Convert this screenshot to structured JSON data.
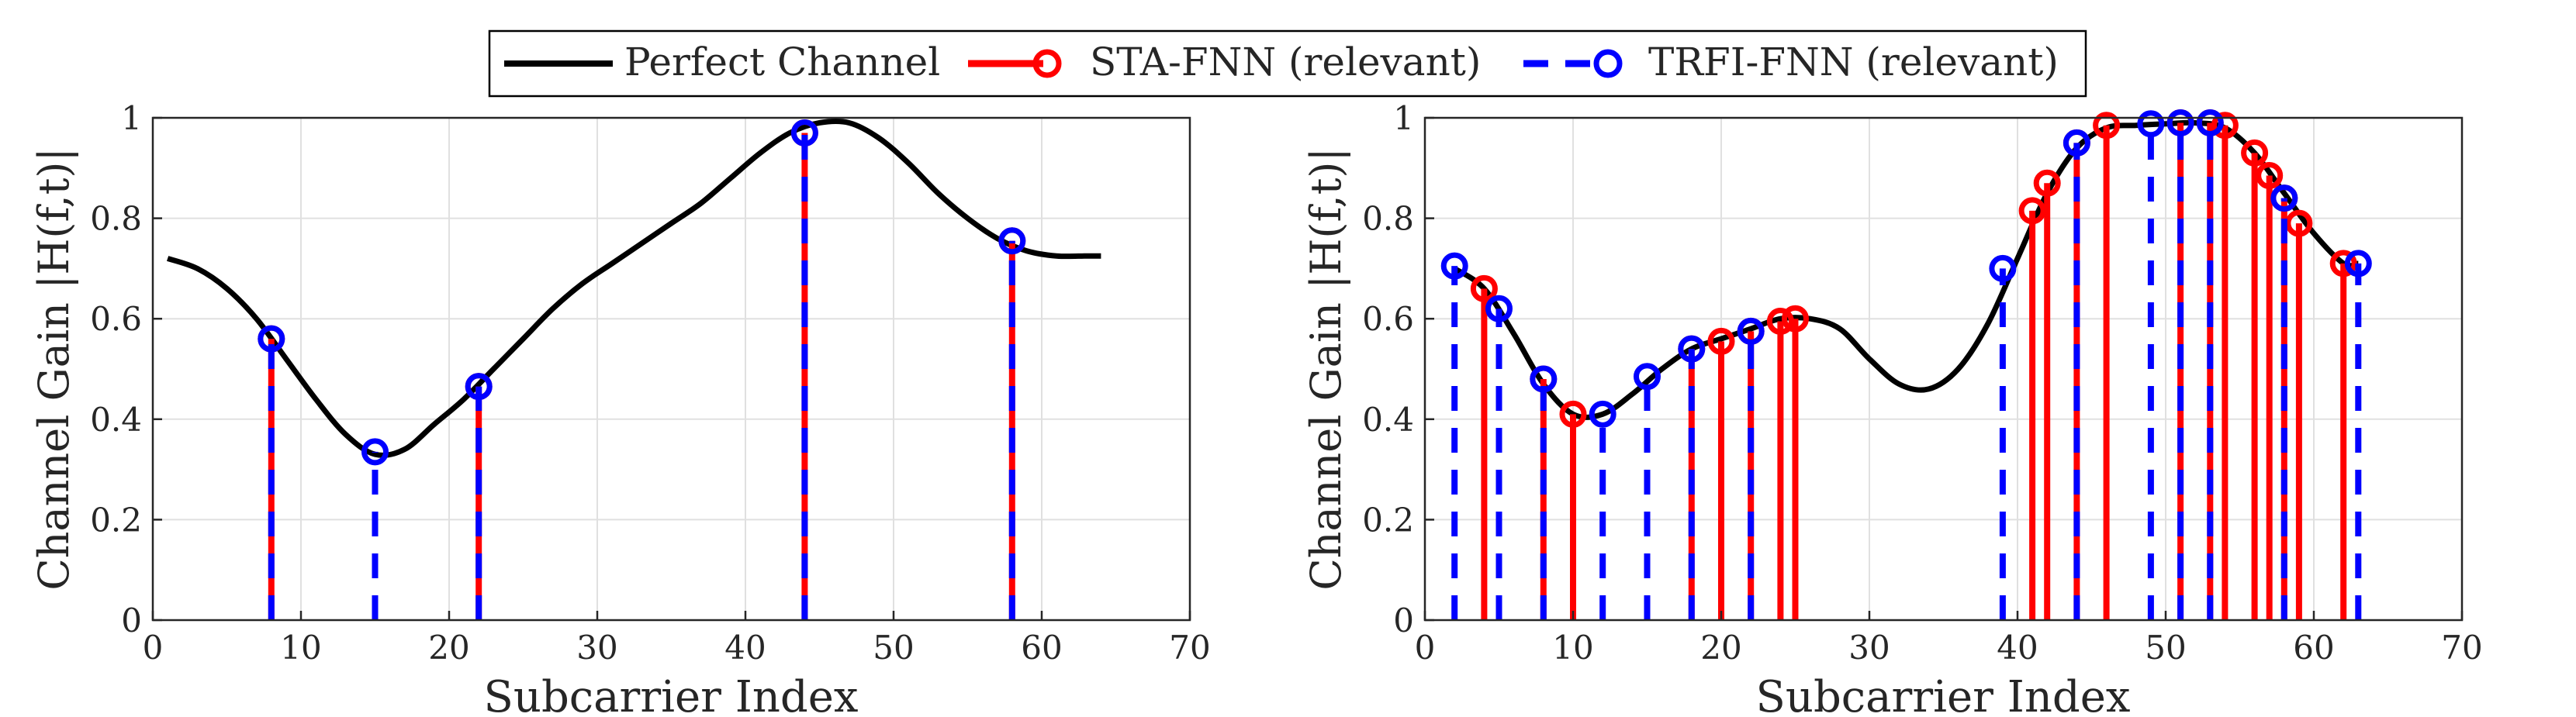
{
  "legend": {
    "entries": [
      {
        "label": "Perfect Channel",
        "color": "#000000",
        "style": "solid-line"
      },
      {
        "label": "STA-FNN (relevant)",
        "color": "#ff0000",
        "style": "solid-stem-circle"
      },
      {
        "label": "TRFI-FNN (relevant)",
        "color": "#0000ff",
        "style": "dashed-stem-circle"
      }
    ]
  },
  "chart_data": [
    {
      "type": "line+stem",
      "title": "",
      "xlabel": "Subcarrier Index",
      "ylabel": "Channel Gain |H(f,t)|",
      "xlim": [
        0,
        70
      ],
      "ylim": [
        0,
        1
      ],
      "xticks": [
        0,
        10,
        20,
        30,
        40,
        50,
        60,
        70
      ],
      "yticks": [
        0,
        0.2,
        0.4,
        0.6,
        0.8,
        1
      ],
      "xtick_labels": [
        "0",
        "10",
        "20",
        "30",
        "40",
        "50",
        "60",
        "70"
      ],
      "ytick_labels": [
        "0",
        "0.2",
        "0.4",
        "0.6",
        "0.8",
        "1"
      ],
      "grid": true,
      "series": [
        {
          "name": "Perfect Channel",
          "kind": "line",
          "x": [
            1,
            3,
            5,
            7,
            9,
            11,
            13,
            15,
            17,
            19,
            21,
            23,
            25,
            27,
            29,
            31,
            33,
            35,
            37,
            39,
            41,
            43,
            45,
            47,
            49,
            51,
            53,
            55,
            57,
            59,
            61,
            63,
            64
          ],
          "y": [
            0.72,
            0.7,
            0.66,
            0.6,
            0.52,
            0.44,
            0.37,
            0.33,
            0.34,
            0.39,
            0.44,
            0.5,
            0.56,
            0.62,
            0.67,
            0.71,
            0.75,
            0.79,
            0.83,
            0.88,
            0.93,
            0.97,
            0.99,
            0.99,
            0.96,
            0.91,
            0.85,
            0.8,
            0.76,
            0.735,
            0.725,
            0.725,
            0.725
          ]
        },
        {
          "name": "STA-FNN (relevant)",
          "kind": "stem",
          "x": [
            8,
            22,
            44,
            58
          ],
          "y": [
            0.56,
            0.465,
            0.97,
            0.755
          ]
        },
        {
          "name": "TRFI-FNN (relevant)",
          "kind": "stem",
          "x": [
            8,
            15,
            22,
            44,
            58
          ],
          "y": [
            0.56,
            0.335,
            0.465,
            0.97,
            0.755
          ]
        }
      ]
    },
    {
      "type": "line+stem",
      "title": "",
      "xlabel": "Subcarrier Index",
      "ylabel": "Channel Gain |H(f,t)|",
      "xlim": [
        0,
        70
      ],
      "ylim": [
        0,
        1
      ],
      "xticks": [
        0,
        10,
        20,
        30,
        40,
        50,
        60,
        70
      ],
      "yticks": [
        0,
        0.2,
        0.4,
        0.6,
        0.8,
        1
      ],
      "xtick_labels": [
        "0",
        "10",
        "20",
        "30",
        "40",
        "50",
        "60",
        "70"
      ],
      "ytick_labels": [
        "0",
        "0.2",
        "0.4",
        "0.6",
        "0.8",
        "1"
      ],
      "grid": true,
      "series": [
        {
          "name": "Perfect Channel",
          "kind": "line",
          "x": [
            2,
            4,
            6,
            8,
            10,
            12,
            14,
            16,
            18,
            20,
            22,
            24,
            26,
            28,
            30,
            32,
            34,
            36,
            38,
            40,
            42,
            44,
            46,
            48,
            50,
            52,
            54,
            56,
            58,
            60,
            62,
            63
          ],
          "y": [
            0.7,
            0.66,
            0.57,
            0.47,
            0.41,
            0.41,
            0.45,
            0.5,
            0.54,
            0.56,
            0.58,
            0.6,
            0.6,
            0.58,
            0.52,
            0.47,
            0.46,
            0.5,
            0.59,
            0.72,
            0.85,
            0.94,
            0.98,
            0.985,
            0.988,
            0.99,
            0.98,
            0.93,
            0.85,
            0.77,
            0.71,
            0.71
          ]
        },
        {
          "name": "STA-FNN (relevant)",
          "kind": "stem",
          "x": [
            4,
            8,
            10,
            18,
            20,
            22,
            24,
            25,
            41,
            42,
            44,
            46,
            51,
            53,
            54,
            56,
            57,
            58,
            59,
            62
          ],
          "y": [
            0.66,
            0.48,
            0.41,
            0.54,
            0.555,
            0.575,
            0.595,
            0.6,
            0.815,
            0.87,
            0.95,
            0.985,
            0.99,
            0.99,
            0.985,
            0.93,
            0.885,
            0.84,
            0.79,
            0.71
          ]
        },
        {
          "name": "TRFI-FNN (relevant)",
          "kind": "stem",
          "x": [
            2,
            5,
            8,
            12,
            15,
            18,
            22,
            39,
            44,
            49,
            51,
            53,
            58,
            63
          ],
          "y": [
            0.705,
            0.62,
            0.48,
            0.41,
            0.485,
            0.54,
            0.575,
            0.7,
            0.95,
            0.988,
            0.99,
            0.99,
            0.84,
            0.71
          ]
        }
      ]
    }
  ]
}
